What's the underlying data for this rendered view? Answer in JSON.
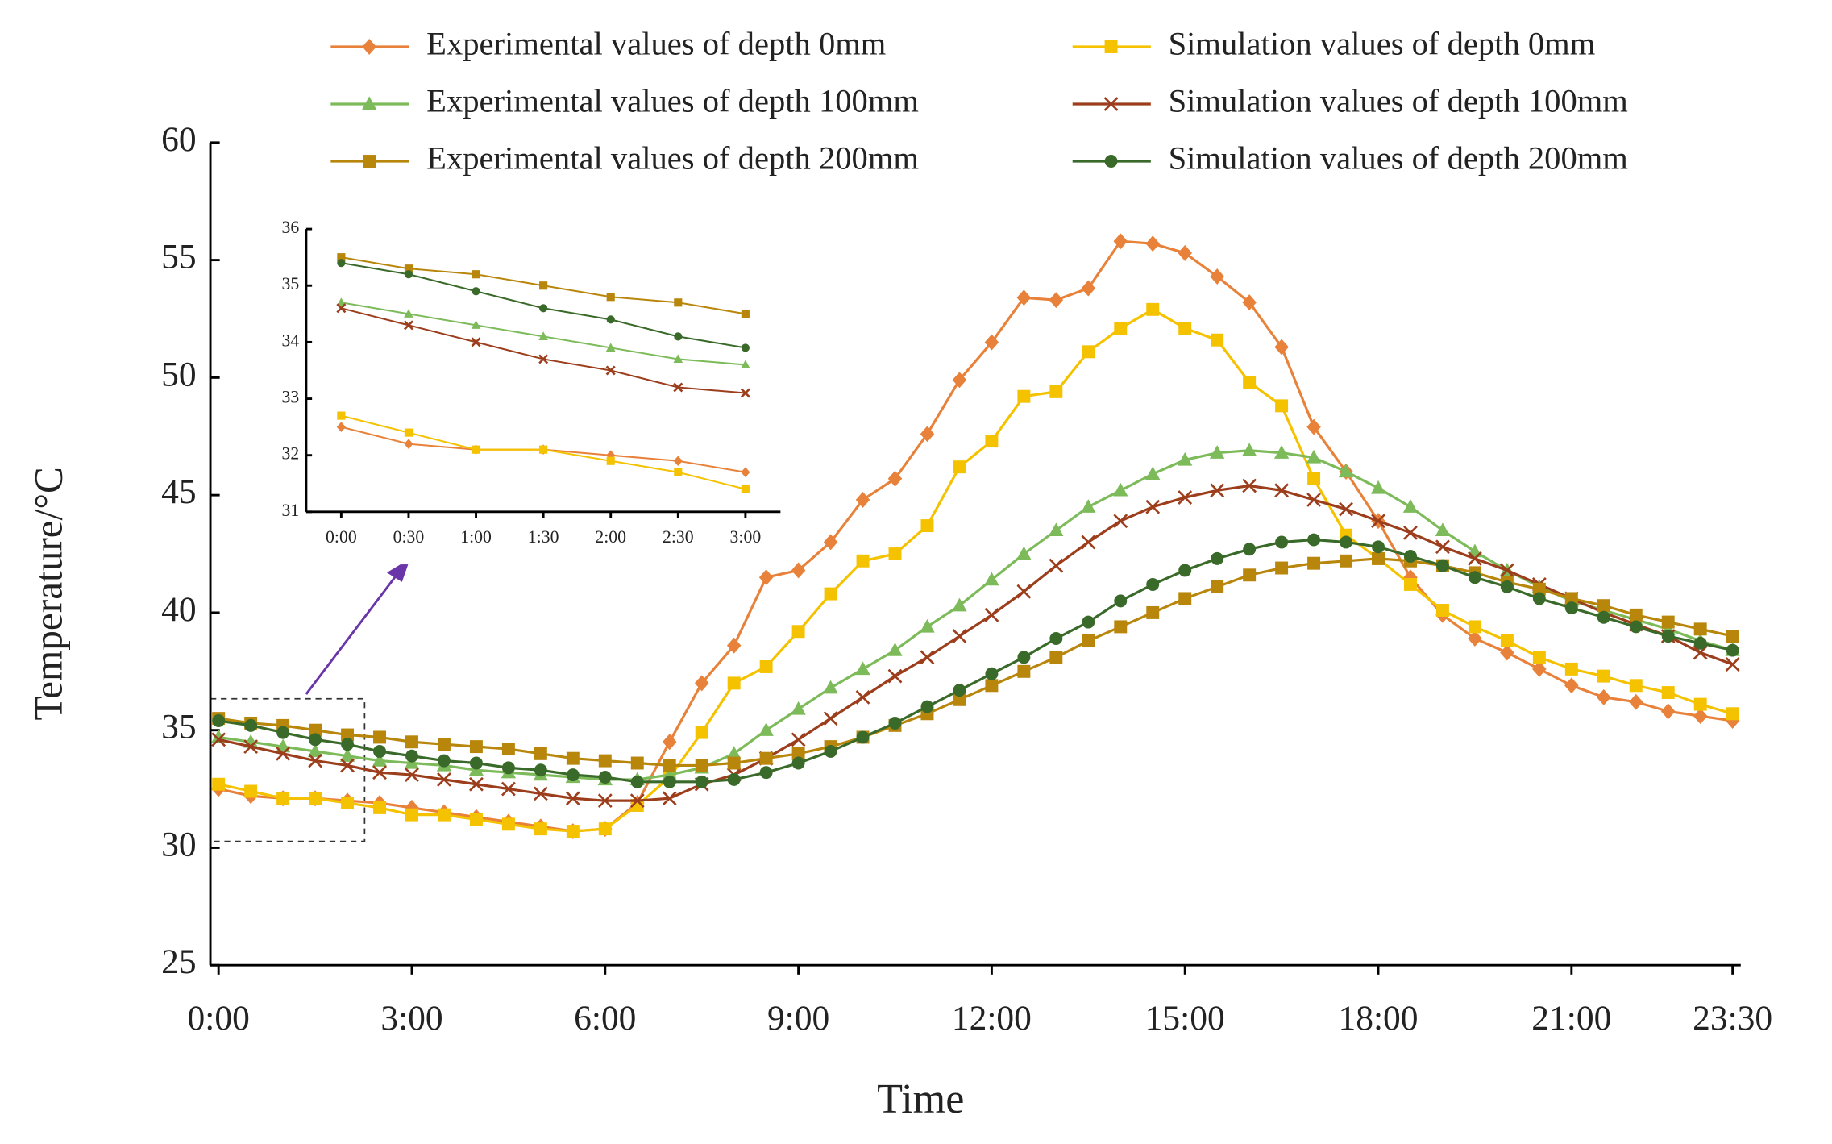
{
  "chart_data": [
    {
      "type": "line",
      "x_label": "Time",
      "y_label": "Temperature/°C",
      "categories": [
        "0:00",
        null,
        null,
        null,
        null,
        null,
        "3:00",
        null,
        null,
        null,
        null,
        null,
        "6:00",
        null,
        null,
        null,
        null,
        null,
        "9:00",
        null,
        null,
        null,
        null,
        null,
        "12:00",
        null,
        null,
        null,
        null,
        null,
        "15:00",
        null,
        null,
        null,
        null,
        null,
        "18:00",
        null,
        null,
        null,
        null,
        null,
        "21:00",
        null,
        null,
        null,
        null,
        "23:30"
      ],
      "ylim": [
        25,
        60
      ],
      "yticks": [
        25,
        30,
        35,
        40,
        45,
        50,
        55,
        60
      ],
      "series": [
        {
          "name": "Experimental values of depth 0mm",
          "color": "#e8823a",
          "marker": "diamond",
          "values": [
            32.5,
            32.2,
            32.1,
            32.1,
            32.0,
            31.9,
            31.7,
            31.5,
            31.3,
            31.1,
            30.9,
            30.7,
            30.8,
            31.9,
            34.5,
            37.0,
            38.6,
            41.5,
            41.8,
            43.0,
            44.8,
            45.7,
            47.6,
            49.9,
            51.5,
            53.4,
            53.3,
            53.8,
            55.8,
            55.7,
            55.3,
            54.3,
            53.2,
            51.3,
            47.9,
            46.0,
            43.9,
            41.5,
            39.9,
            38.9,
            38.3,
            37.6,
            36.9,
            36.4,
            36.2,
            35.8,
            35.6,
            35.4
          ]
        },
        {
          "name": "Simulation values of depth 0mm",
          "color": "#f5c200",
          "marker": "square",
          "values": [
            32.7,
            32.4,
            32.1,
            32.1,
            31.9,
            31.7,
            31.4,
            31.4,
            31.2,
            31.0,
            30.8,
            30.7,
            30.8,
            31.8,
            33.0,
            34.9,
            37.0,
            37.7,
            39.2,
            40.8,
            42.2,
            42.5,
            43.7,
            46.2,
            47.3,
            49.2,
            49.4,
            51.1,
            52.1,
            52.9,
            52.1,
            51.6,
            49.8,
            48.8,
            45.7,
            43.3,
            42.3,
            41.2,
            40.1,
            39.4,
            38.8,
            38.1,
            37.6,
            37.3,
            36.9,
            36.6,
            36.1,
            35.7
          ]
        },
        {
          "name": "Experimental values of depth 100mm",
          "color": "#7dbb5a",
          "marker": "triangle",
          "values": [
            34.7,
            34.5,
            34.3,
            34.1,
            33.9,
            33.7,
            33.6,
            33.5,
            33.3,
            33.2,
            33.1,
            33.0,
            32.9,
            32.9,
            33.1,
            33.4,
            34.0,
            35.0,
            35.9,
            36.8,
            37.6,
            38.4,
            39.4,
            40.3,
            41.4,
            42.5,
            43.5,
            44.5,
            45.2,
            45.9,
            46.5,
            46.8,
            46.9,
            46.8,
            46.6,
            46.0,
            45.3,
            44.5,
            43.5,
            42.6,
            41.8,
            41.1,
            40.5,
            40.1,
            39.7,
            39.3,
            38.8,
            38.4
          ]
        },
        {
          "name": "Simulation values of depth 100mm",
          "color": "#9c3d1c",
          "marker": "cross",
          "values": [
            34.6,
            34.3,
            34.0,
            33.7,
            33.5,
            33.2,
            33.1,
            32.9,
            32.7,
            32.5,
            32.3,
            32.1,
            32.0,
            32.0,
            32.1,
            32.7,
            33.1,
            33.8,
            34.6,
            35.5,
            36.4,
            37.3,
            38.1,
            39.0,
            39.9,
            40.9,
            42.0,
            43.0,
            43.9,
            44.5,
            44.9,
            45.2,
            45.4,
            45.2,
            44.8,
            44.4,
            43.9,
            43.4,
            42.8,
            42.3,
            41.8,
            41.2,
            40.6,
            40.0,
            39.5,
            39.0,
            38.3,
            37.8
          ]
        },
        {
          "name": "Experimental values of depth 200mm",
          "color": "#b8860b",
          "marker": "square",
          "values": [
            35.5,
            35.3,
            35.2,
            35.0,
            34.8,
            34.7,
            34.5,
            34.4,
            34.3,
            34.2,
            34.0,
            33.8,
            33.7,
            33.6,
            33.5,
            33.5,
            33.6,
            33.8,
            34.0,
            34.3,
            34.7,
            35.2,
            35.7,
            36.3,
            36.9,
            37.5,
            38.1,
            38.8,
            39.4,
            40.0,
            40.6,
            41.1,
            41.6,
            41.9,
            42.1,
            42.2,
            42.3,
            42.2,
            42.0,
            41.7,
            41.3,
            41.0,
            40.6,
            40.3,
            39.9,
            39.6,
            39.3,
            39.0
          ]
        },
        {
          "name": "Simulation values of depth 200mm",
          "color": "#3a6a2a",
          "marker": "circle",
          "values": [
            35.4,
            35.2,
            34.9,
            34.6,
            34.4,
            34.1,
            33.9,
            33.7,
            33.6,
            33.4,
            33.3,
            33.1,
            33.0,
            32.8,
            32.8,
            32.8,
            32.9,
            33.2,
            33.6,
            34.1,
            34.7,
            35.3,
            36.0,
            36.7,
            37.4,
            38.1,
            38.9,
            39.6,
            40.5,
            41.2,
            41.8,
            42.3,
            42.7,
            43.0,
            43.1,
            43.0,
            42.8,
            42.4,
            42.0,
            41.5,
            41.1,
            40.6,
            40.2,
            39.8,
            39.4,
            39.0,
            38.7,
            38.4
          ]
        }
      ]
    },
    {
      "type": "line",
      "categories": [
        "0:00",
        "0:30",
        "1:00",
        "1:30",
        "2:00",
        "2:30",
        "3:00"
      ],
      "ylim": [
        31,
        36
      ],
      "yticks": [
        31,
        32,
        33,
        34,
        35,
        36
      ],
      "series": [
        {
          "color": "#e8823a",
          "marker": "diamond",
          "values": [
            32.5,
            32.2,
            32.1,
            32.1,
            32.0,
            31.9,
            31.7
          ]
        },
        {
          "color": "#f5c200",
          "marker": "square",
          "values": [
            32.7,
            32.4,
            32.1,
            32.1,
            31.9,
            31.7,
            31.4
          ]
        },
        {
          "color": "#7dbb5a",
          "marker": "triangle",
          "values": [
            34.7,
            34.5,
            34.3,
            34.1,
            33.9,
            33.7,
            33.6
          ]
        },
        {
          "color": "#9c3d1c",
          "marker": "cross",
          "values": [
            34.6,
            34.3,
            34.0,
            33.7,
            33.5,
            33.2,
            33.1
          ]
        },
        {
          "color": "#b8860b",
          "marker": "square",
          "values": [
            35.5,
            35.3,
            35.2,
            35.0,
            34.8,
            34.7,
            34.5
          ]
        },
        {
          "color": "#3a6a2a",
          "marker": "circle",
          "values": [
            35.4,
            35.2,
            34.9,
            34.6,
            34.4,
            34.1,
            33.9
          ]
        }
      ]
    }
  ]
}
